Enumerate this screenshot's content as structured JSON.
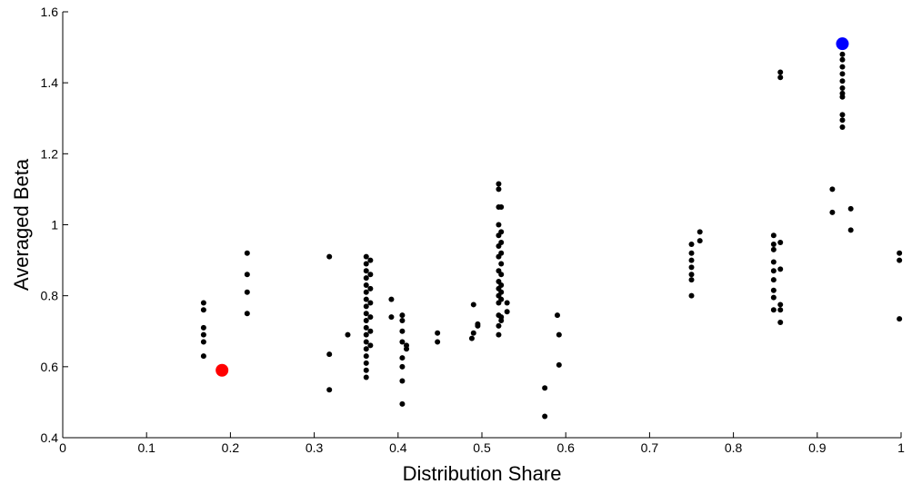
{
  "chart_data": {
    "type": "scatter",
    "title": "",
    "xlabel": "Distribution Share",
    "ylabel": "Averaged Beta",
    "xlim": [
      0,
      1
    ],
    "ylim": [
      0.4,
      1.6
    ],
    "x_ticks": [
      0,
      0.1,
      0.2,
      0.3,
      0.4,
      0.5,
      0.6,
      0.7,
      0.8,
      0.9,
      1
    ],
    "x_tick_labels": [
      "0",
      "0.1",
      "0.2",
      "0.3",
      "0.4",
      "0.5",
      "0.6",
      "0.7",
      "0.8",
      "0.9",
      "1"
    ],
    "y_ticks": [
      0.4,
      0.6,
      0.8,
      1.0,
      1.2,
      1.4,
      1.6
    ],
    "y_tick_labels": [
      "0.4",
      "0.6",
      "0.8",
      "1",
      "1.2",
      "1.4",
      "1.6"
    ],
    "grid": false,
    "series": [
      {
        "color": "#000000",
        "marker": "dot",
        "points": [
          [
            0.168,
            0.78
          ],
          [
            0.168,
            0.76
          ],
          [
            0.168,
            0.71
          ],
          [
            0.168,
            0.69
          ],
          [
            0.168,
            0.67
          ],
          [
            0.168,
            0.63
          ],
          [
            0.22,
            0.92
          ],
          [
            0.22,
            0.86
          ],
          [
            0.22,
            0.81
          ],
          [
            0.22,
            0.75
          ],
          [
            0.318,
            0.91
          ],
          [
            0.318,
            0.635
          ],
          [
            0.318,
            0.535
          ],
          [
            0.34,
            0.69
          ],
          [
            0.362,
            0.91
          ],
          [
            0.362,
            0.89
          ],
          [
            0.362,
            0.87
          ],
          [
            0.362,
            0.85
          ],
          [
            0.362,
            0.83
          ],
          [
            0.362,
            0.81
          ],
          [
            0.362,
            0.79
          ],
          [
            0.362,
            0.77
          ],
          [
            0.362,
            0.75
          ],
          [
            0.362,
            0.73
          ],
          [
            0.362,
            0.71
          ],
          [
            0.362,
            0.69
          ],
          [
            0.362,
            0.67
          ],
          [
            0.362,
            0.65
          ],
          [
            0.362,
            0.63
          ],
          [
            0.362,
            0.61
          ],
          [
            0.362,
            0.59
          ],
          [
            0.362,
            0.57
          ],
          [
            0.367,
            0.9
          ],
          [
            0.367,
            0.86
          ],
          [
            0.367,
            0.82
          ],
          [
            0.367,
            0.78
          ],
          [
            0.367,
            0.74
          ],
          [
            0.367,
            0.7
          ],
          [
            0.367,
            0.66
          ],
          [
            0.392,
            0.79
          ],
          [
            0.392,
            0.74
          ],
          [
            0.405,
            0.745
          ],
          [
            0.405,
            0.73
          ],
          [
            0.405,
            0.7
          ],
          [
            0.405,
            0.67
          ],
          [
            0.405,
            0.625
          ],
          [
            0.405,
            0.6
          ],
          [
            0.405,
            0.56
          ],
          [
            0.405,
            0.495
          ],
          [
            0.41,
            0.66
          ],
          [
            0.41,
            0.65
          ],
          [
            0.447,
            0.695
          ],
          [
            0.447,
            0.67
          ],
          [
            0.488,
            0.68
          ],
          [
            0.49,
            0.695
          ],
          [
            0.49,
            0.775
          ],
          [
            0.495,
            0.715
          ],
          [
            0.495,
            0.72
          ],
          [
            0.52,
            1.115
          ],
          [
            0.52,
            1.1
          ],
          [
            0.52,
            1.05
          ],
          [
            0.52,
            1.0
          ],
          [
            0.52,
            0.97
          ],
          [
            0.52,
            0.94
          ],
          [
            0.52,
            0.91
          ],
          [
            0.52,
            0.87
          ],
          [
            0.52,
            0.84
          ],
          [
            0.52,
            0.82
          ],
          [
            0.52,
            0.8
          ],
          [
            0.52,
            0.78
          ],
          [
            0.52,
            0.745
          ],
          [
            0.52,
            0.715
          ],
          [
            0.52,
            0.69
          ],
          [
            0.523,
            1.05
          ],
          [
            0.523,
            0.98
          ],
          [
            0.523,
            0.95
          ],
          [
            0.523,
            0.92
          ],
          [
            0.523,
            0.89
          ],
          [
            0.523,
            0.86
          ],
          [
            0.523,
            0.83
          ],
          [
            0.523,
            0.81
          ],
          [
            0.523,
            0.79
          ],
          [
            0.523,
            0.74
          ],
          [
            0.523,
            0.73
          ],
          [
            0.53,
            0.78
          ],
          [
            0.53,
            0.755
          ],
          [
            0.575,
            0.54
          ],
          [
            0.575,
            0.46
          ],
          [
            0.59,
            0.745
          ],
          [
            0.592,
            0.69
          ],
          [
            0.592,
            0.605
          ],
          [
            0.75,
            0.945
          ],
          [
            0.75,
            0.92
          ],
          [
            0.75,
            0.9
          ],
          [
            0.75,
            0.88
          ],
          [
            0.75,
            0.86
          ],
          [
            0.75,
            0.845
          ],
          [
            0.75,
            0.8
          ],
          [
            0.76,
            0.98
          ],
          [
            0.76,
            0.955
          ],
          [
            0.848,
            0.97
          ],
          [
            0.848,
            0.945
          ],
          [
            0.848,
            0.93
          ],
          [
            0.848,
            0.895
          ],
          [
            0.848,
            0.87
          ],
          [
            0.848,
            0.845
          ],
          [
            0.848,
            0.815
          ],
          [
            0.848,
            0.795
          ],
          [
            0.848,
            0.76
          ],
          [
            0.856,
            1.43
          ],
          [
            0.856,
            1.415
          ],
          [
            0.856,
            0.95
          ],
          [
            0.856,
            0.875
          ],
          [
            0.856,
            0.775
          ],
          [
            0.856,
            0.76
          ],
          [
            0.856,
            0.725
          ],
          [
            0.918,
            1.1
          ],
          [
            0.918,
            1.035
          ],
          [
            0.93,
            1.48
          ],
          [
            0.93,
            1.465
          ],
          [
            0.93,
            1.445
          ],
          [
            0.93,
            1.425
          ],
          [
            0.93,
            1.405
          ],
          [
            0.93,
            1.385
          ],
          [
            0.93,
            1.37
          ],
          [
            0.93,
            1.36
          ],
          [
            0.93,
            1.31
          ],
          [
            0.93,
            1.295
          ],
          [
            0.93,
            1.275
          ],
          [
            0.94,
            1.045
          ],
          [
            0.94,
            0.985
          ],
          [
            0.998,
            0.92
          ],
          [
            0.998,
            0.9
          ],
          [
            0.998,
            0.735
          ]
        ]
      },
      {
        "color": "#ff0000",
        "marker": "large-dot",
        "points": [
          [
            0.19,
            0.59
          ]
        ]
      },
      {
        "color": "#0000ff",
        "marker": "large-dot",
        "points": [
          [
            0.93,
            1.51
          ]
        ]
      }
    ]
  }
}
